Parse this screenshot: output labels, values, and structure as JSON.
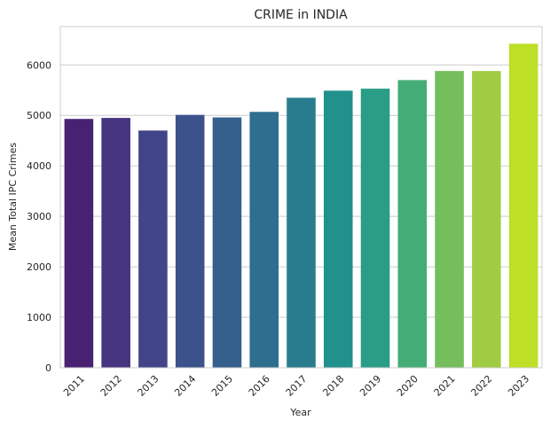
{
  "chart_data": {
    "type": "bar",
    "title": "CRIME in INDIA",
    "xlabel": "Year",
    "ylabel": "Mean Total IPC Crimes",
    "categories": [
      "2011",
      "2012",
      "2013",
      "2014",
      "2015",
      "2016",
      "2017",
      "2018",
      "2019",
      "2020",
      "2021",
      "2022",
      "2023"
    ],
    "values": [
      4930,
      4950,
      4700,
      5010,
      4960,
      5070,
      5350,
      5490,
      5530,
      5700,
      5880,
      5880,
      6420
    ],
    "colors": [
      "#482173",
      "#463480",
      "#414487",
      "#3b528b",
      "#355f8d",
      "#2e6e8e",
      "#287c8e",
      "#21918c",
      "#2a9d86",
      "#44ad77",
      "#75be5c",
      "#a0cc44",
      "#bddf26"
    ],
    "ylim": [
      0,
      6760
    ],
    "yticks": [
      "0",
      "1000",
      "2000",
      "3000",
      "4000",
      "5000",
      "6000"
    ],
    "grid": "horizontal",
    "tick_rotation_deg": -45
  }
}
